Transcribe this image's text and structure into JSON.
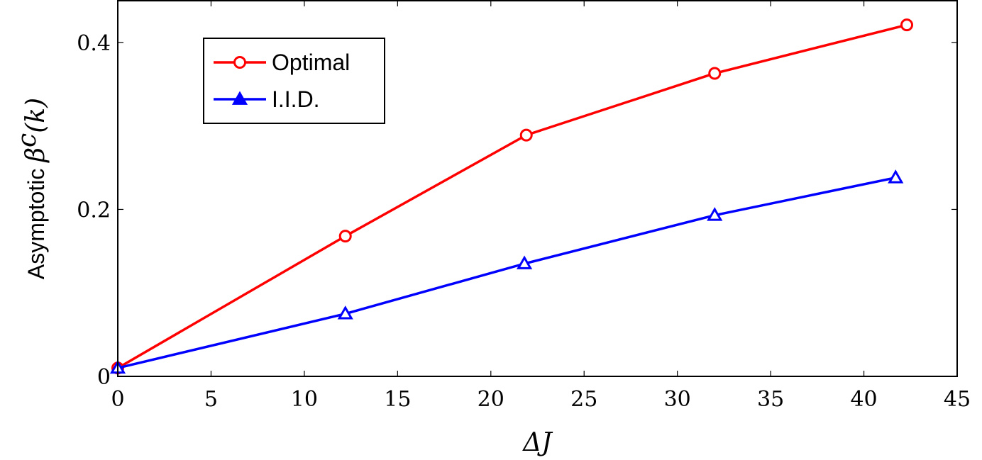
{
  "chart_data": {
    "type": "line",
    "xlabel": "ΔJ",
    "ylabel": "Asymptotic β^c(k)",
    "ylabel_text": "Asymptotic ",
    "ylabel_math": "β",
    "ylabel_sup": "c",
    "ylabel_args": "(k)",
    "xlim": [
      0,
      45
    ],
    "ylim": [
      0,
      0.45
    ],
    "xticks": [
      0,
      5,
      10,
      15,
      20,
      25,
      30,
      35,
      40,
      45
    ],
    "yticks": [
      0,
      0.2,
      0.4
    ],
    "ytick_labels": [
      "0",
      "0.2",
      "0.4"
    ],
    "grid": false,
    "legend_position": "top-left",
    "series": [
      {
        "name": "Optimal",
        "color": "#ff0000",
        "marker": "circle",
        "x": [
          0,
          12.2,
          21.9,
          32.0,
          42.3
        ],
        "y": [
          0.01,
          0.168,
          0.289,
          0.363,
          0.421
        ]
      },
      {
        "name": "I.I.D.",
        "color": "#0000ff",
        "marker": "triangle",
        "x": [
          0,
          12.2,
          21.8,
          32.0,
          41.7
        ],
        "y": [
          0.01,
          0.075,
          0.135,
          0.193,
          0.238
        ]
      }
    ]
  }
}
